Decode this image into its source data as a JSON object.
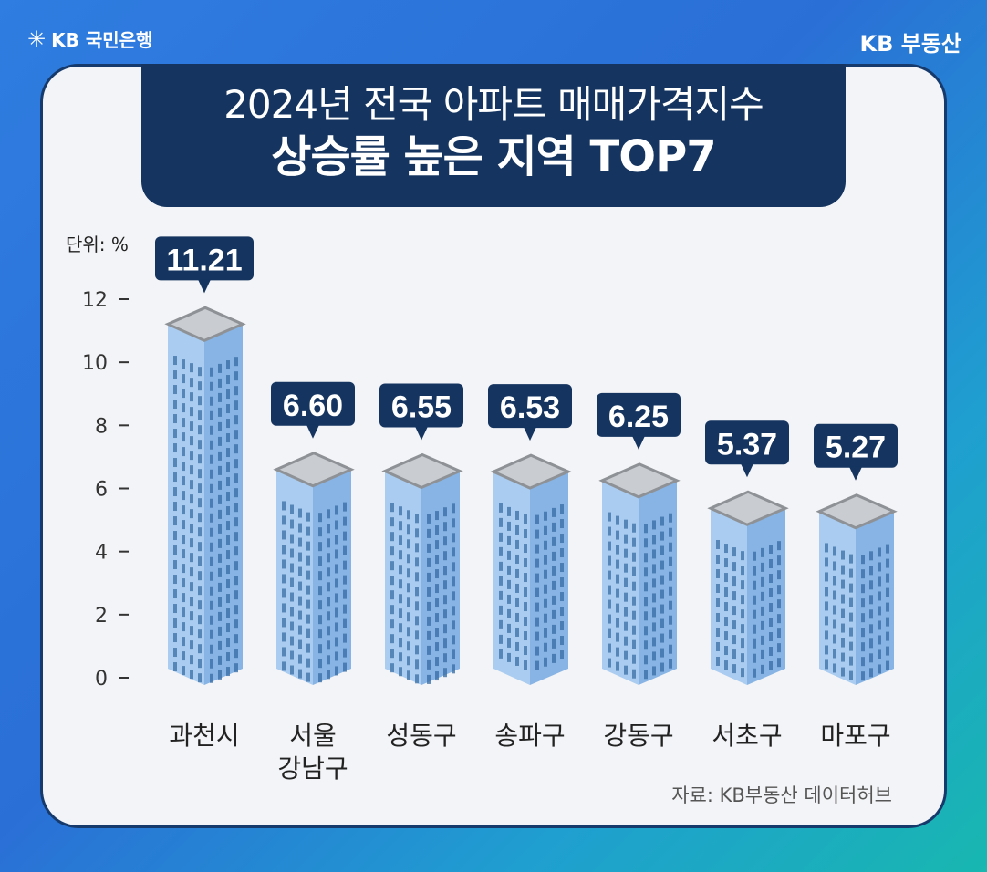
{
  "brand": {
    "bank_name": "KB 국민은행",
    "product": "KB 부동산"
  },
  "header": {
    "title_line1": "2024년 전국 아파트 매매가격지수",
    "title_line2": "상승률 높은 지역 TOP7"
  },
  "unit_label": "단위: %",
  "source": "자료: KB부동산 데이터허브",
  "colors": {
    "title_bg": "#153560",
    "building_front": "#a9ccf0",
    "building_side": "#87b4e4",
    "window": "#3b6fa6",
    "roof": "#c9ccd1",
    "callout": "#153560"
  },
  "chart_data": {
    "type": "bar",
    "categories": [
      "과천시",
      "서울 강남구",
      "성동구",
      "송파구",
      "강동구",
      "서초구",
      "마포구"
    ],
    "category_lines": [
      [
        "과천시"
      ],
      [
        "서울",
        "강남구"
      ],
      [
        "성동구"
      ],
      [
        "송파구"
      ],
      [
        "강동구"
      ],
      [
        "서초구"
      ],
      [
        "마포구"
      ]
    ],
    "values": [
      11.21,
      6.6,
      6.55,
      6.53,
      6.25,
      5.37,
      5.27
    ],
    "value_labels": [
      "11.21",
      "6.60",
      "6.55",
      "6.53",
      "6.25",
      "5.37",
      "5.27"
    ],
    "yticks": [
      0,
      2,
      4,
      6,
      8,
      10,
      12
    ],
    "ylim": [
      0,
      12
    ],
    "grid": false
  }
}
